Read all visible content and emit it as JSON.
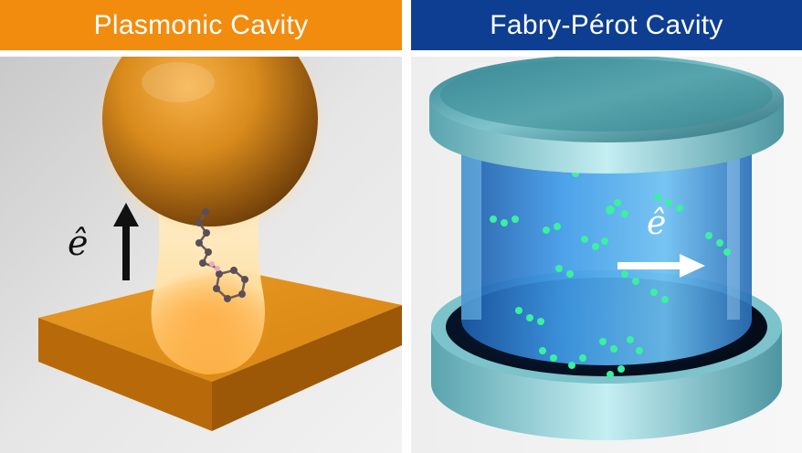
{
  "left": {
    "title": "Plasmonic Cavity",
    "banner_color": "#f28c0f",
    "polarization_symbol": "ê",
    "polarization_direction": "vertical"
  },
  "right": {
    "title": "Fabry-Pérot Cavity",
    "banner_color": "#0d3e91",
    "polarization_symbol": "ê",
    "polarization_direction": "horizontal"
  }
}
